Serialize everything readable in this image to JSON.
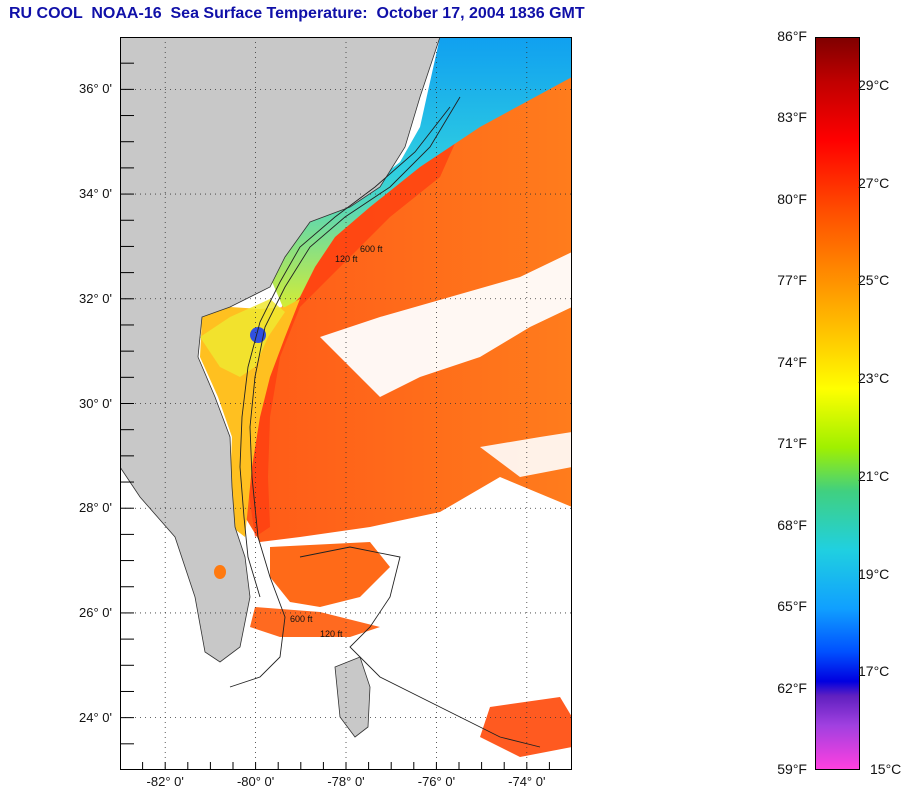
{
  "title": "RU COOL  NOAA-16  Sea Surface Temperature:  October 17, 2004 1836 GMT",
  "map": {
    "lat_labels": [
      "36° 0'",
      "34° 0'",
      "32° 0'",
      "30° 0'",
      "28° 0'",
      "26° 0'",
      "24° 0'"
    ],
    "lat_values": [
      36,
      34,
      32,
      30,
      28,
      26,
      24
    ],
    "lon_labels": [
      "-82° 0'",
      "-80° 0'",
      "-78° 0'",
      "-76° 0'",
      "-74° 0'"
    ],
    "lon_values": [
      -82,
      -80,
      -78,
      -76,
      -74
    ],
    "lat_range": [
      23,
      37
    ],
    "lon_range": [
      -83,
      -73
    ],
    "contour_labels": [
      "600 ft",
      "120 ft"
    ],
    "colors": {
      "land": "#c8c8c8",
      "cloud": "#ffffff",
      "gulf_stream": "#ff4a1a",
      "offshore": "#ff7a1a",
      "shelf_warm": "#ffb020",
      "shelf_mid": "#e8ee20",
      "shelf_cool": "#40e0d0",
      "shelf_cold": "#10a8f0"
    }
  },
  "colorbar": {
    "fahrenheit_labels": [
      "86°F",
      "83°F",
      "80°F",
      "77°F",
      "74°F",
      "71°F",
      "68°F",
      "65°F",
      "62°F",
      "59°F"
    ],
    "fahrenheit_values": [
      86,
      83,
      80,
      77,
      74,
      71,
      68,
      65,
      62,
      59
    ],
    "celsius_labels": [
      "29°C",
      "27°C",
      "25°C",
      "23°C",
      "21°C",
      "19°C",
      "17°C",
      "15°C"
    ],
    "celsius_values": [
      29,
      27,
      25,
      23,
      21,
      19,
      17,
      15
    ]
  }
}
